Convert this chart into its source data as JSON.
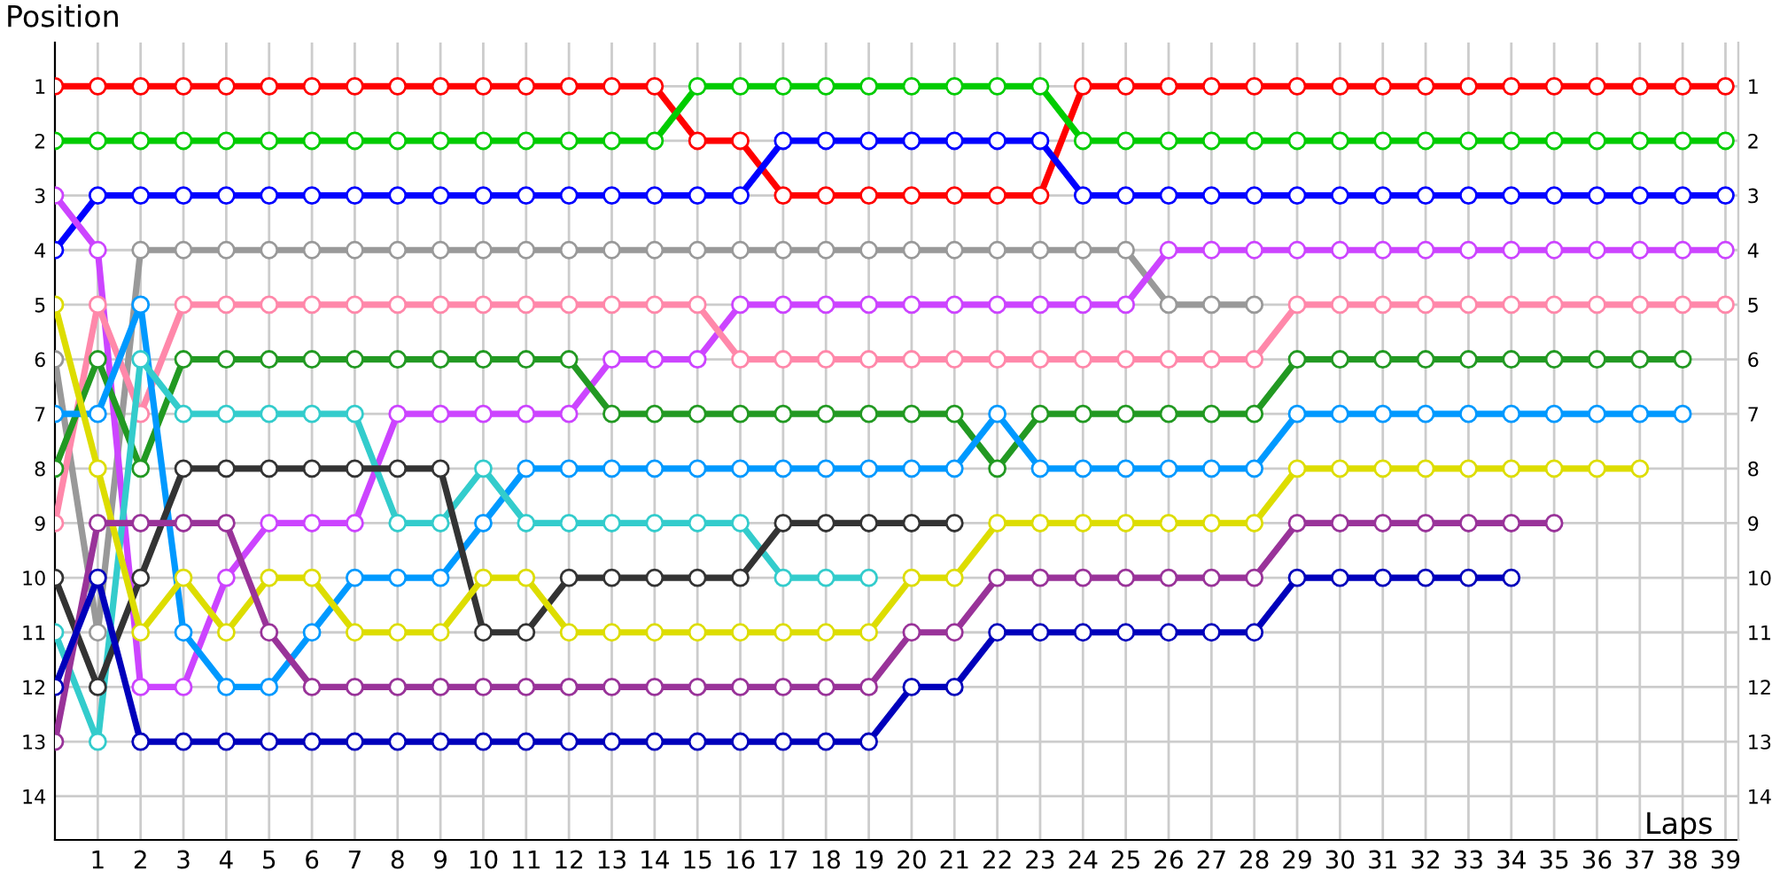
{
  "chart_data": {
    "type": "line",
    "xlabel": "Laps",
    "ylabel": "Position",
    "x": [
      0,
      1,
      2,
      3,
      4,
      5,
      6,
      7,
      8,
      9,
      10,
      11,
      12,
      13,
      14,
      15,
      16,
      17,
      18,
      19,
      20,
      21,
      22,
      23,
      24,
      25,
      26,
      27,
      28,
      29,
      30,
      31,
      32,
      33,
      34,
      35,
      36,
      37,
      38,
      39
    ],
    "xlim": [
      0,
      39.3
    ],
    "xticks": [
      1,
      2,
      3,
      4,
      5,
      6,
      7,
      8,
      9,
      10,
      11,
      12,
      13,
      14,
      15,
      16,
      17,
      18,
      19,
      20,
      21,
      22,
      23,
      24,
      25,
      26,
      27,
      28,
      29,
      30,
      31,
      32,
      33,
      34,
      35,
      36,
      37,
      38,
      39
    ],
    "ylim": [
      14.8,
      0.2
    ],
    "yticks": [
      1,
      2,
      3,
      4,
      5,
      6,
      7,
      8,
      9,
      10,
      11,
      12,
      13,
      14
    ],
    "y2lim": [
      14.8,
      0.2
    ],
    "y2ticks": [
      1,
      2,
      3,
      4,
      5,
      6,
      7,
      8,
      9,
      10,
      11,
      12,
      13,
      14
    ],
    "grid": true,
    "marker": "circle",
    "line_style": "solid",
    "legend": false,
    "series": [
      {
        "color": "#ff0000",
        "values": [
          1,
          1,
          1,
          1,
          1,
          1,
          1,
          1,
          1,
          1,
          1,
          1,
          1,
          1,
          1,
          2,
          2,
          3,
          3,
          3,
          3,
          3,
          3,
          3,
          1,
          1,
          1,
          1,
          1,
          1,
          1,
          1,
          1,
          1,
          1,
          1,
          1,
          1,
          1,
          1
        ]
      },
      {
        "color": "#00cc00",
        "values": [
          2,
          2,
          2,
          2,
          2,
          2,
          2,
          2,
          2,
          2,
          2,
          2,
          2,
          2,
          2,
          1,
          1,
          1,
          1,
          1,
          1,
          1,
          1,
          1,
          2,
          2,
          2,
          2,
          2,
          2,
          2,
          2,
          2,
          2,
          2,
          2,
          2,
          2,
          2,
          2
        ]
      },
      {
        "color": "#0000ff",
        "values": [
          4,
          3,
          3,
          3,
          3,
          3,
          3,
          3,
          3,
          3,
          3,
          3,
          3,
          3,
          3,
          3,
          3,
          2,
          2,
          2,
          2,
          2,
          2,
          2,
          3,
          3,
          3,
          3,
          3,
          3,
          3,
          3,
          3,
          3,
          3,
          3,
          3,
          3,
          3,
          3
        ]
      },
      {
        "color": "#999999",
        "values": [
          6,
          11,
          4,
          4,
          4,
          4,
          4,
          4,
          4,
          4,
          4,
          4,
          4,
          4,
          4,
          4,
          4,
          4,
          4,
          4,
          4,
          4,
          4,
          4,
          4,
          4,
          5,
          5,
          5,
          null,
          null,
          null,
          null,
          null,
          null,
          null,
          null,
          null,
          null,
          null
        ]
      },
      {
        "color": "#cc44ff",
        "values": [
          3,
          4,
          12,
          12,
          10,
          9,
          9,
          9,
          7,
          7,
          7,
          7,
          7,
          6,
          6,
          6,
          5,
          5,
          5,
          5,
          5,
          5,
          5,
          5,
          5,
          5,
          4,
          4,
          4,
          4,
          4,
          4,
          4,
          4,
          4,
          4,
          4,
          4,
          4,
          4
        ]
      },
      {
        "color": "#ff88aa",
        "values": [
          9,
          5,
          7,
          5,
          5,
          5,
          5,
          5,
          5,
          5,
          5,
          5,
          5,
          5,
          5,
          5,
          6,
          6,
          6,
          6,
          6,
          6,
          6,
          6,
          6,
          6,
          6,
          6,
          6,
          5,
          5,
          5,
          5,
          5,
          5,
          5,
          5,
          5,
          5,
          5
        ]
      },
      {
        "color": "#229922",
        "values": [
          8,
          6,
          8,
          6,
          6,
          6,
          6,
          6,
          6,
          6,
          6,
          6,
          6,
          7,
          7,
          7,
          7,
          7,
          7,
          7,
          7,
          7,
          8,
          7,
          7,
          7,
          7,
          7,
          7,
          6,
          6,
          6,
          6,
          6,
          6,
          6,
          6,
          6,
          6,
          null
        ]
      },
      {
        "color": "#0099ff",
        "values": [
          7,
          7,
          5,
          11,
          12,
          12,
          11,
          10,
          10,
          10,
          9,
          8,
          8,
          8,
          8,
          8,
          8,
          8,
          8,
          8,
          8,
          8,
          7,
          8,
          8,
          8,
          8,
          8,
          8,
          7,
          7,
          7,
          7,
          7,
          7,
          7,
          7,
          7,
          7,
          null
        ]
      },
      {
        "color": "#33cccc",
        "values": [
          11,
          13,
          6,
          7,
          7,
          7,
          7,
          7,
          9,
          9,
          8,
          9,
          9,
          9,
          9,
          9,
          9,
          10,
          10,
          10,
          null,
          null,
          null,
          null,
          null,
          null,
          null,
          null,
          null,
          null,
          null,
          null,
          null,
          null,
          null,
          null,
          null,
          null,
          null,
          null
        ]
      },
      {
        "color": "#333333",
        "values": [
          10,
          12,
          10,
          8,
          8,
          8,
          8,
          8,
          8,
          8,
          11,
          11,
          10,
          10,
          10,
          10,
          10,
          9,
          9,
          9,
          9,
          9,
          null,
          null,
          null,
          null,
          null,
          null,
          null,
          null,
          null,
          null,
          null,
          null,
          null,
          null,
          null,
          null,
          null,
          null
        ]
      },
      {
        "color": "#dddd00",
        "values": [
          5,
          8,
          11,
          10,
          11,
          10,
          10,
          11,
          11,
          11,
          10,
          10,
          11,
          11,
          11,
          11,
          11,
          11,
          11,
          11,
          10,
          10,
          9,
          9,
          9,
          9,
          9,
          9,
          9,
          8,
          8,
          8,
          8,
          8,
          8,
          8,
          8,
          8,
          null,
          null
        ]
      },
      {
        "color": "#993399",
        "values": [
          13,
          9,
          9,
          9,
          9,
          11,
          12,
          12,
          12,
          12,
          12,
          12,
          12,
          12,
          12,
          12,
          12,
          12,
          12,
          12,
          11,
          11,
          10,
          10,
          10,
          10,
          10,
          10,
          10,
          9,
          9,
          9,
          9,
          9,
          9,
          9,
          null,
          null,
          null,
          null
        ]
      },
      {
        "color": "#0000bb",
        "values": [
          12,
          10,
          13,
          13,
          13,
          13,
          13,
          13,
          13,
          13,
          13,
          13,
          13,
          13,
          13,
          13,
          13,
          13,
          13,
          13,
          12,
          12,
          11,
          11,
          11,
          11,
          11,
          11,
          11,
          10,
          10,
          10,
          10,
          10,
          10,
          null,
          null,
          null,
          null,
          null
        ]
      }
    ]
  }
}
